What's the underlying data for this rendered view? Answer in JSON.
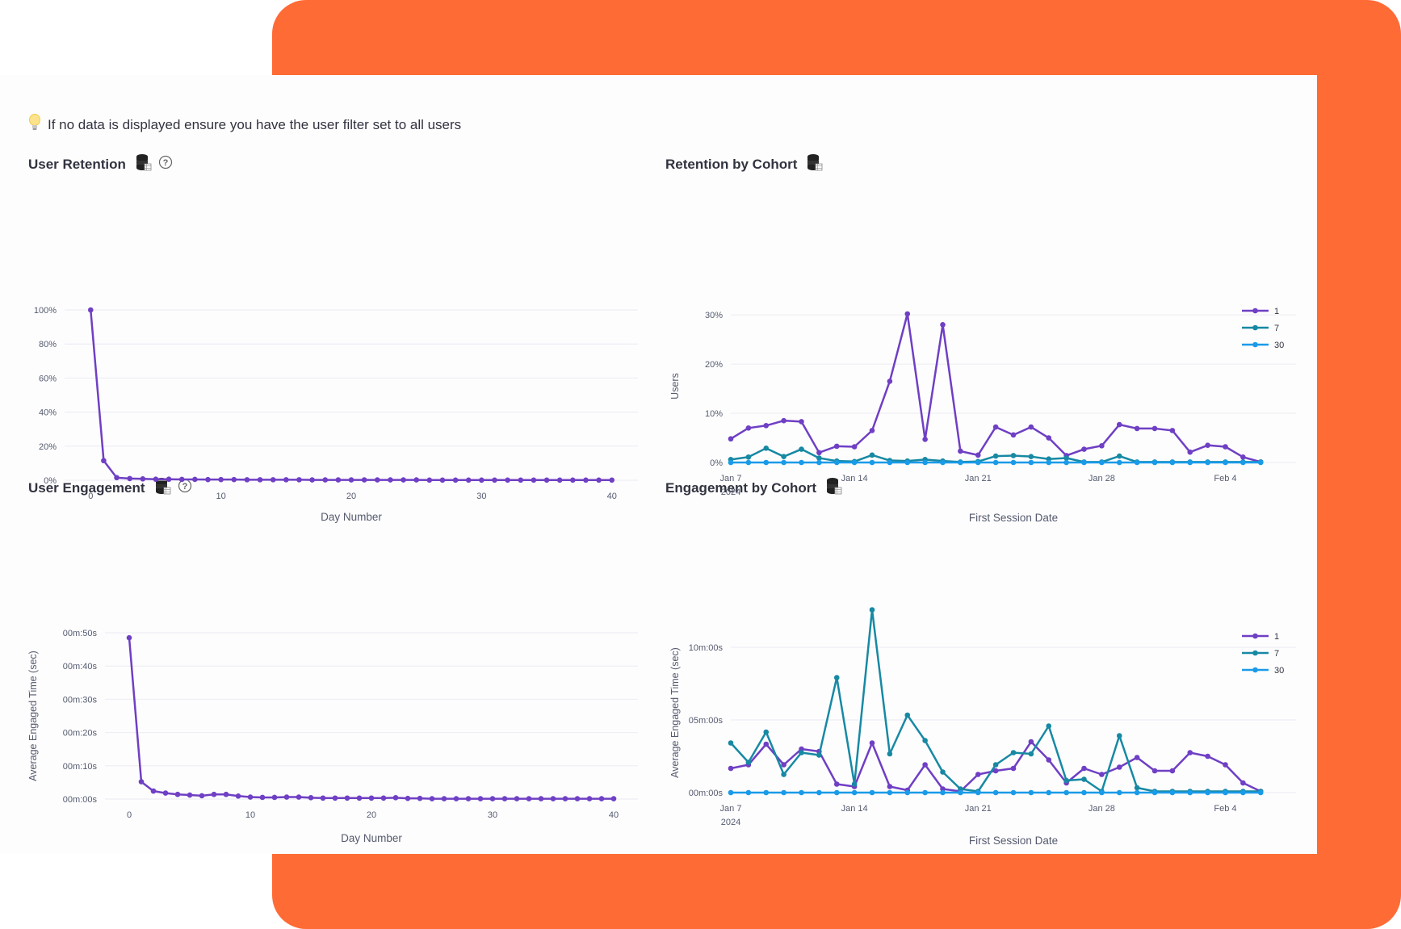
{
  "tip": {
    "text": "If no data is displayed ensure you have the user filter set to all users",
    "icon": "lightbulb-icon"
  },
  "colors": {
    "purple": "#6f3fc4",
    "teal": "#1789a3",
    "blue": "#1a9be8",
    "orange": "#ff6b35",
    "grid": "#ececf2",
    "axis_text": "#555b6e"
  },
  "charts": {
    "retention": {
      "title": "User Retention"
    },
    "cohort_retention": {
      "title": "Retention by Cohort"
    },
    "engagement": {
      "title": "User Engagement"
    },
    "cohort_engagement": {
      "title": "Engagement by Cohort"
    }
  },
  "chart_data": [
    {
      "id": "retention",
      "type": "line",
      "title": "User Retention",
      "xlabel": "Day Number",
      "ylabel": "",
      "xlim": [
        -2,
        42
      ],
      "ylim": [
        0,
        100
      ],
      "xticks": [
        0,
        10,
        20,
        30,
        40
      ],
      "xticklabels": [
        "0",
        "10",
        "20",
        "30",
        "40"
      ],
      "yticks": [
        0,
        20,
        40,
        60,
        80,
        100
      ],
      "yticklabels": [
        "0%",
        "20%",
        "40%",
        "60%",
        "80%",
        "100%"
      ],
      "series": [
        {
          "color": "#6f3fc4",
          "x": [
            0,
            1,
            2,
            3,
            4,
            5,
            6,
            7,
            8,
            9,
            10,
            11,
            12,
            13,
            14,
            15,
            16,
            17,
            18,
            19,
            20,
            21,
            22,
            23,
            24,
            25,
            26,
            27,
            28,
            29,
            30,
            31,
            32,
            33,
            34,
            35,
            36,
            37,
            38,
            39,
            40
          ],
          "values": [
            100,
            11.5,
            1.5,
            1.0,
            0.8,
            0.6,
            0.6,
            0.5,
            0.5,
            0.4,
            0.4,
            0.4,
            0.3,
            0.3,
            0.3,
            0.3,
            0.3,
            0.2,
            0.2,
            0.2,
            0.2,
            0.2,
            0.2,
            0.2,
            0.2,
            0.2,
            0.1,
            0.1,
            0.1,
            0.1,
            0.1,
            0.1,
            0.1,
            0.1,
            0.1,
            0.1,
            0.1,
            0.1,
            0.1,
            0.1,
            0.1
          ]
        }
      ]
    },
    {
      "id": "cohort_retention",
      "type": "line",
      "title": "Retention by Cohort",
      "xlabel": "First Session Date",
      "ylabel": "Users",
      "x_type": "date",
      "xlim": [
        "2024-01-07",
        "2024-02-08"
      ],
      "ylim": [
        0,
        31
      ],
      "xticks": [
        "2024-01-07",
        "2024-01-14",
        "2024-01-21",
        "2024-01-28",
        "2024-02-04"
      ],
      "xticklabels": [
        "Jan 7",
        "Jan 14",
        "Jan 21",
        "Jan 28",
        "Feb 4"
      ],
      "xtick_sublabel": "2024",
      "yticks": [
        0,
        10,
        20,
        30
      ],
      "yticklabels": [
        "0%",
        "10%",
        "20%",
        "30%"
      ],
      "legend_position": "top-right",
      "x": [
        "2024-01-07",
        "2024-01-08",
        "2024-01-09",
        "2024-01-10",
        "2024-01-11",
        "2024-01-12",
        "2024-01-13",
        "2024-01-14",
        "2024-01-15",
        "2024-01-16",
        "2024-01-17",
        "2024-01-18",
        "2024-01-19",
        "2024-01-20",
        "2024-01-21",
        "2024-01-22",
        "2024-01-23",
        "2024-01-24",
        "2024-01-25",
        "2024-01-26",
        "2024-01-27",
        "2024-01-28",
        "2024-01-29",
        "2024-01-30",
        "2024-01-31",
        "2024-02-01",
        "2024-02-02",
        "2024-02-03",
        "2024-02-04",
        "2024-02-05",
        "2024-02-06"
      ],
      "series": [
        {
          "name": "1",
          "color": "#6f3fc4",
          "values": [
            4.8,
            7.0,
            7.5,
            8.5,
            8.3,
            2.0,
            3.3,
            3.2,
            6.5,
            16.5,
            30.2,
            4.7,
            28.0,
            2.3,
            1.5,
            7.2,
            5.6,
            7.2,
            5.0,
            1.4,
            2.7,
            3.4,
            7.7,
            6.9,
            6.9,
            6.5,
            2.1,
            3.5,
            3.2,
            1.1,
            0.1
          ]
        },
        {
          "name": "7",
          "color": "#1789a3",
          "values": [
            0.6,
            1.1,
            2.9,
            1.2,
            2.7,
            0.9,
            0.3,
            0.2,
            1.5,
            0.4,
            0.3,
            0.6,
            0.3,
            0.1,
            0.2,
            1.3,
            1.4,
            1.2,
            0.7,
            0.9,
            0.1,
            0.1,
            1.3,
            0.1,
            0.1,
            0.1,
            0.1,
            0.1,
            0.1,
            0.1,
            0.1
          ]
        },
        {
          "name": "30",
          "color": "#1a9be8",
          "values": [
            0,
            0,
            0,
            0,
            0,
            0,
            0,
            0,
            0,
            0,
            0,
            0,
            0,
            0,
            0,
            0,
            0,
            0,
            0,
            0,
            0,
            0,
            0,
            0,
            0,
            0,
            0,
            0,
            0,
            0,
            0
          ]
        }
      ]
    },
    {
      "id": "engagement",
      "type": "line",
      "title": "User Engagement",
      "xlabel": "Day Number",
      "ylabel": "Average Engaged Time (sec)",
      "xlim": [
        -2,
        42
      ],
      "ylim": [
        0,
        50
      ],
      "xticks": [
        0,
        10,
        20,
        30,
        40
      ],
      "xticklabels": [
        "0",
        "10",
        "20",
        "30",
        "40"
      ],
      "yticks": [
        0,
        10,
        20,
        30,
        40,
        50
      ],
      "yticklabels": [
        "00m:00s",
        "00m:10s",
        "00m:20s",
        "00m:30s",
        "00m:40s",
        "00m:50s"
      ],
      "series": [
        {
          "color": "#6f3fc4",
          "x": [
            0,
            1,
            2,
            3,
            4,
            5,
            6,
            7,
            8,
            9,
            10,
            11,
            12,
            13,
            14,
            15,
            16,
            17,
            18,
            19,
            20,
            21,
            22,
            23,
            24,
            25,
            26,
            27,
            28,
            29,
            30,
            31,
            32,
            33,
            34,
            35,
            36,
            37,
            38,
            39,
            40
          ],
          "values": [
            48.5,
            5.2,
            2.4,
            1.8,
            1.4,
            1.2,
            1.0,
            1.4,
            1.4,
            0.9,
            0.6,
            0.5,
            0.5,
            0.6,
            0.6,
            0.4,
            0.3,
            0.3,
            0.3,
            0.3,
            0.3,
            0.3,
            0.4,
            0.2,
            0.2,
            0.1,
            0.1,
            0.1,
            0.1,
            0.1,
            0.1,
            0.1,
            0.1,
            0.1,
            0.1,
            0.1,
            0.1,
            0.1,
            0.1,
            0.1,
            0.1
          ]
        }
      ]
    },
    {
      "id": "cohort_engagement",
      "type": "line",
      "title": "Engagement by Cohort",
      "xlabel": "First Session Date",
      "ylabel": "Average Engaged Time (sec)",
      "x_type": "date",
      "xlim": [
        "2024-01-07",
        "2024-02-08"
      ],
      "ylim": [
        0,
        660
      ],
      "xticks": [
        "2024-01-07",
        "2024-01-14",
        "2024-01-21",
        "2024-01-28",
        "2024-02-04"
      ],
      "xticklabels": [
        "Jan 7",
        "Jan 14",
        "Jan 21",
        "Jan 28",
        "Feb 4"
      ],
      "xtick_sublabel": "2024",
      "yticks": [
        0,
        300,
        600
      ],
      "yticklabels": [
        "00m:00s",
        "05m:00s",
        "10m:00s"
      ],
      "legend_position": "top-right",
      "x": [
        "2024-01-07",
        "2024-01-08",
        "2024-01-09",
        "2024-01-10",
        "2024-01-11",
        "2024-01-12",
        "2024-01-13",
        "2024-01-14",
        "2024-01-15",
        "2024-01-16",
        "2024-01-17",
        "2024-01-18",
        "2024-01-19",
        "2024-01-20",
        "2024-01-21",
        "2024-01-22",
        "2024-01-23",
        "2024-01-24",
        "2024-01-25",
        "2024-01-26",
        "2024-01-27",
        "2024-01-28",
        "2024-01-29",
        "2024-01-30",
        "2024-01-31",
        "2024-02-01",
        "2024-02-02",
        "2024-02-03",
        "2024-02-04",
        "2024-02-05",
        "2024-02-06"
      ],
      "series": [
        {
          "name": "1",
          "color": "#6f3fc4",
          "values": [
            100,
            115,
            200,
            115,
            180,
            170,
            35,
            25,
            205,
            25,
            10,
            115,
            15,
            5,
            75,
            90,
            100,
            210,
            135,
            40,
            100,
            75,
            105,
            145,
            90,
            90,
            165,
            150,
            115,
            40,
            5
          ]
        },
        {
          "name": "7",
          "color": "#1789a3",
          "values": [
            205,
            125,
            250,
            75,
            165,
            155,
            475,
            35,
            755,
            160,
            320,
            215,
            85,
            15,
            5,
            115,
            165,
            160,
            275,
            50,
            55,
            5,
            235,
            20,
            5,
            5,
            5,
            5,
            5,
            5,
            5
          ]
        },
        {
          "name": "30",
          "color": "#1a9be8",
          "values": [
            0,
            0,
            0,
            0,
            0,
            0,
            0,
            0,
            0,
            0,
            0,
            0,
            0,
            0,
            0,
            0,
            0,
            0,
            0,
            0,
            0,
            0,
            0,
            0,
            0,
            0,
            0,
            0,
            0,
            0,
            0
          ]
        }
      ]
    }
  ]
}
